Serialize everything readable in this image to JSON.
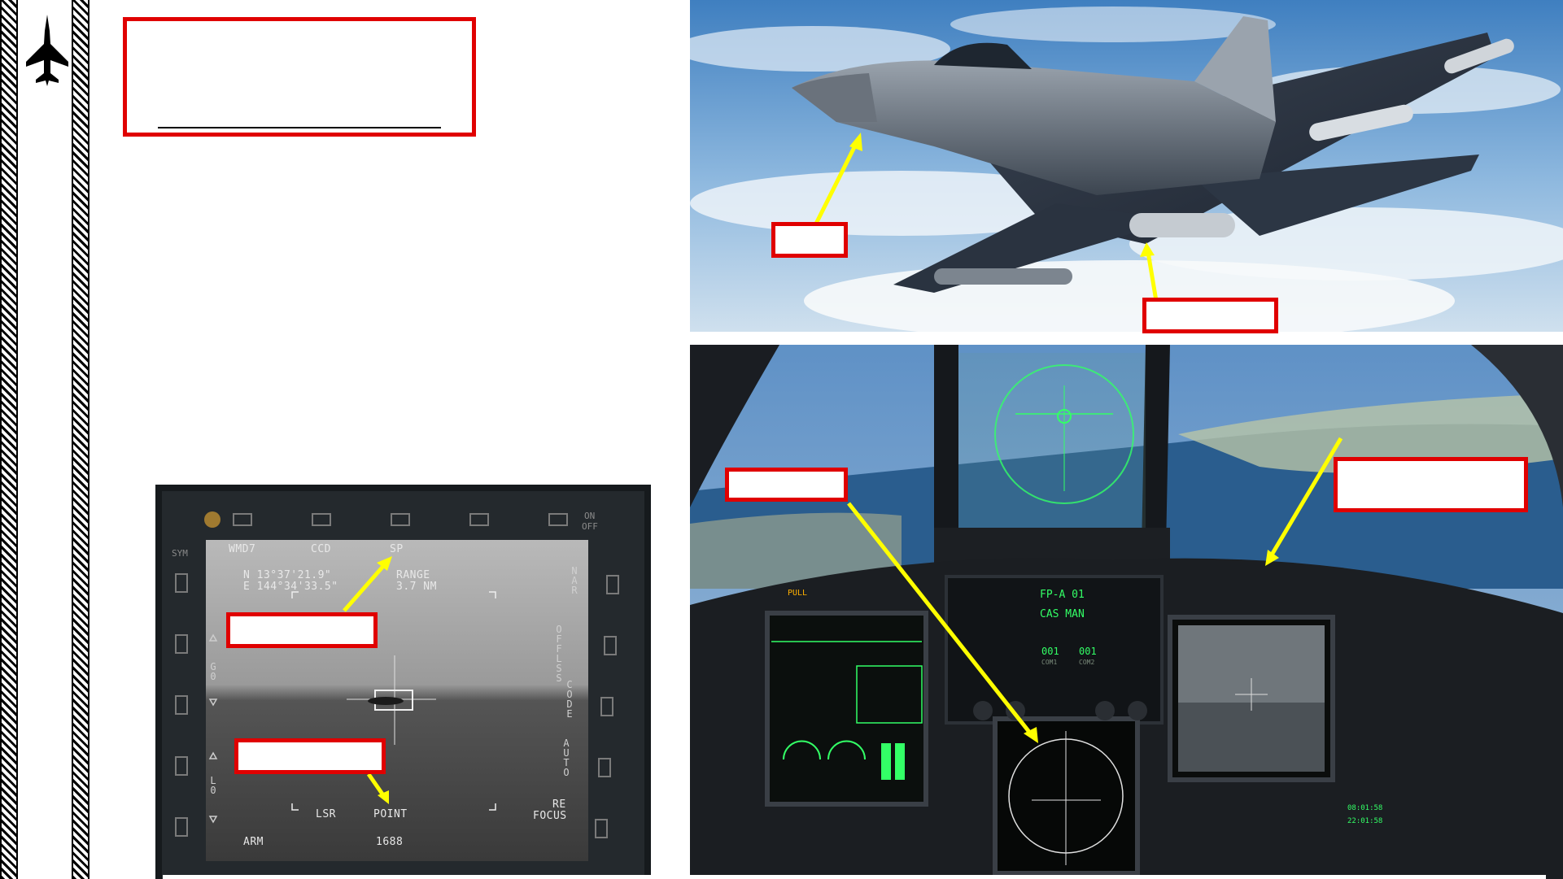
{
  "mfd": {
    "tl_label": "WMD7",
    "mode_ccd": "CCD",
    "mode_sp": "SP",
    "coord_n": "N  13°37'21.9\"",
    "coord_e": "E 144°34'33.5\"",
    "range_label": "RANGE",
    "range_value": "3.7 NM",
    "nar": "NAR",
    "off_lss": "OFF LSS",
    "code": "CODE",
    "auto": "AUTO",
    "g0": "G0",
    "l0": "L0",
    "lsr": "LSR",
    "point": "POINT",
    "re_focus_1": "RE",
    "re_focus_2": "FOCUS",
    "arm": "ARM",
    "code_value": "1688",
    "sym": "SYM",
    "on": "ON",
    "off": "OFF"
  },
  "cockpit": {
    "ufcp_line1": "FP-A  01",
    "ufcp_line2": "CAS  MAN",
    "ufcp_line3a": "001",
    "ufcp_line3b": "001",
    "com1": "COM1",
    "com2": "COM2",
    "pull": "PULL",
    "clock1": "08:01:58",
    "clock2": "22:01:58"
  },
  "colors": {
    "callout_border": "#e00000",
    "arrow": "#ffff00",
    "hud_green": "#33ff66"
  }
}
